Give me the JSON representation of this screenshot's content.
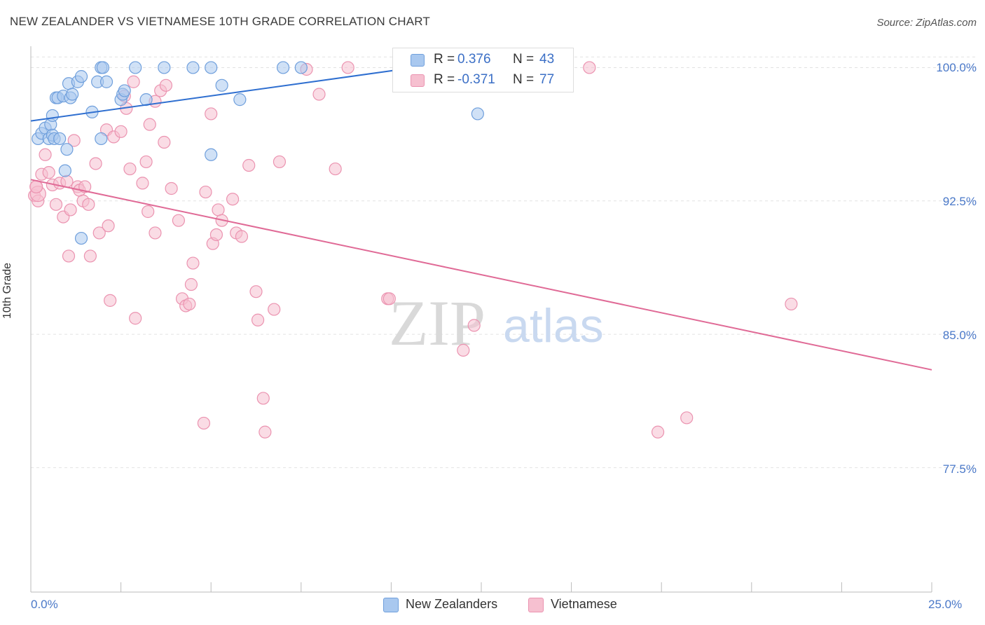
{
  "title": "NEW ZEALANDER VS VIETNAMESE 10TH GRADE CORRELATION CHART",
  "source": "Source: ZipAtlas.com",
  "watermark": {
    "zip": "ZIP",
    "atlas": "atlas"
  },
  "colors": {
    "blue_fill": "#a9c8ef",
    "blue_stroke": "#6f9fdc",
    "blue_line": "#2f6fd0",
    "pink_fill": "#f6c0d0",
    "pink_stroke": "#eb93b0",
    "pink_line": "#e06a96",
    "tick_text": "#4a78c8",
    "grid": "#e2e2e2"
  },
  "legend": {
    "rows": [
      {
        "r_label": "R =",
        "r_value": " 0.376",
        "n_label": "N =",
        "n_value": "43"
      },
      {
        "r_label": "R =",
        "r_value": "-0.371",
        "n_label": "N =",
        "n_value": "77"
      }
    ]
  },
  "bottom_legend": [
    "New Zealanders",
    "Vietnamese"
  ],
  "chart_data": {
    "type": "scatter",
    "title": "NEW ZEALANDER VS VIETNAMESE 10TH GRADE CORRELATION CHART",
    "xlabel": "",
    "ylabel": "10th Grade",
    "xlim": [
      0,
      25
    ],
    "ylim": [
      70.5,
      101.2
    ],
    "x_tick_labels": [
      "0.0%",
      "25.0%"
    ],
    "y_ticks": [
      77.5,
      85.0,
      92.5,
      100.0
    ],
    "y_tick_labels": [
      "77.5%",
      "85.0%",
      "92.5%",
      "100.0%"
    ],
    "grid": "horizontal dashed",
    "legend_position": "top-center",
    "series": [
      {
        "name": "New Zealanders",
        "r": 0.376,
        "n": 43,
        "trend": [
          [
            0.0,
            97.0
          ],
          [
            11.0,
            100.1
          ]
        ],
        "points": [
          [
            0.2,
            96.0
          ],
          [
            0.3,
            96.3
          ],
          [
            0.4,
            96.6
          ],
          [
            0.5,
            96.0
          ],
          [
            0.55,
            96.8
          ],
          [
            0.6,
            97.3
          ],
          [
            0.6,
            96.2
          ],
          [
            0.65,
            96.0
          ],
          [
            0.7,
            98.3
          ],
          [
            0.75,
            98.3
          ],
          [
            0.8,
            96.0
          ],
          [
            0.9,
            98.4
          ],
          [
            0.95,
            94.2
          ],
          [
            1.0,
            95.4
          ],
          [
            1.05,
            99.1
          ],
          [
            1.1,
            98.3
          ],
          [
            1.15,
            98.5
          ],
          [
            1.3,
            99.2
          ],
          [
            1.4,
            99.5
          ],
          [
            1.4,
            90.4
          ],
          [
            1.7,
            97.5
          ],
          [
            1.85,
            99.2
          ],
          [
            1.95,
            100.0
          ],
          [
            1.95,
            96.0
          ],
          [
            2.0,
            100.0
          ],
          [
            2.1,
            99.2
          ],
          [
            2.5,
            98.2
          ],
          [
            2.55,
            98.5
          ],
          [
            2.6,
            98.7
          ],
          [
            2.9,
            100.0
          ],
          [
            3.2,
            98.2
          ],
          [
            3.7,
            100.0
          ],
          [
            4.5,
            100.0
          ],
          [
            5.0,
            100.0
          ],
          [
            5.0,
            95.1
          ],
          [
            5.3,
            99.0
          ],
          [
            5.8,
            98.2
          ],
          [
            7.0,
            100.0
          ],
          [
            7.5,
            100.0
          ],
          [
            11.1,
            100.0
          ],
          [
            12.2,
            100.0
          ],
          [
            12.5,
            100.0
          ],
          [
            12.4,
            97.4
          ]
        ]
      },
      {
        "name": "Vietnamese",
        "r": -0.371,
        "n": 77,
        "trend": [
          [
            0.0,
            93.7
          ],
          [
            25.0,
            83.0
          ]
        ],
        "points": [
          [
            0.1,
            92.8
          ],
          [
            0.15,
            93.3
          ],
          [
            0.2,
            92.5
          ],
          [
            0.3,
            94.0
          ],
          [
            0.4,
            95.1
          ],
          [
            0.5,
            94.1
          ],
          [
            0.6,
            93.4
          ],
          [
            0.7,
            92.3
          ],
          [
            0.8,
            93.5
          ],
          [
            0.9,
            91.6
          ],
          [
            1.0,
            93.6
          ],
          [
            1.05,
            89.4
          ],
          [
            1.1,
            92.0
          ],
          [
            1.2,
            95.9
          ],
          [
            1.3,
            93.3
          ],
          [
            1.35,
            93.1
          ],
          [
            1.45,
            92.5
          ],
          [
            1.5,
            93.3
          ],
          [
            1.6,
            92.3
          ],
          [
            1.65,
            89.4
          ],
          [
            1.8,
            94.6
          ],
          [
            1.9,
            90.7
          ],
          [
            2.1,
            96.5
          ],
          [
            2.15,
            91.1
          ],
          [
            2.2,
            86.9
          ],
          [
            2.3,
            96.1
          ],
          [
            2.5,
            96.4
          ],
          [
            2.6,
            98.4
          ],
          [
            2.65,
            97.7
          ],
          [
            2.75,
            94.3
          ],
          [
            2.85,
            99.2
          ],
          [
            2.9,
            85.9
          ],
          [
            3.1,
            93.5
          ],
          [
            3.2,
            94.7
          ],
          [
            3.25,
            91.9
          ],
          [
            3.3,
            96.8
          ],
          [
            3.45,
            98.1
          ],
          [
            3.45,
            90.7
          ],
          [
            3.6,
            98.7
          ],
          [
            3.7,
            95.8
          ],
          [
            3.75,
            99.0
          ],
          [
            3.9,
            93.2
          ],
          [
            4.1,
            91.4
          ],
          [
            4.2,
            87.0
          ],
          [
            4.3,
            86.6
          ],
          [
            4.4,
            86.7
          ],
          [
            4.45,
            87.8
          ],
          [
            4.5,
            89.0
          ],
          [
            4.8,
            80.0
          ],
          [
            4.85,
            93.0
          ],
          [
            5.0,
            97.4
          ],
          [
            5.05,
            90.1
          ],
          [
            5.15,
            90.6
          ],
          [
            5.2,
            92.0
          ],
          [
            5.3,
            91.4
          ],
          [
            5.6,
            92.6
          ],
          [
            5.7,
            90.7
          ],
          [
            5.85,
            90.5
          ],
          [
            6.05,
            94.5
          ],
          [
            6.25,
            87.4
          ],
          [
            6.3,
            85.8
          ],
          [
            6.45,
            81.4
          ],
          [
            6.5,
            79.5
          ],
          [
            6.75,
            86.4
          ],
          [
            6.9,
            94.7
          ],
          [
            7.65,
            99.9
          ],
          [
            8.0,
            98.5
          ],
          [
            8.45,
            94.3
          ],
          [
            8.8,
            100.0
          ],
          [
            9.9,
            87.0
          ],
          [
            9.95,
            87.0
          ],
          [
            12.0,
            84.1
          ],
          [
            12.3,
            85.5
          ],
          [
            15.5,
            100.0
          ],
          [
            17.4,
            79.5
          ],
          [
            18.2,
            80.3
          ],
          [
            21.1,
            86.7
          ]
        ]
      }
    ]
  }
}
